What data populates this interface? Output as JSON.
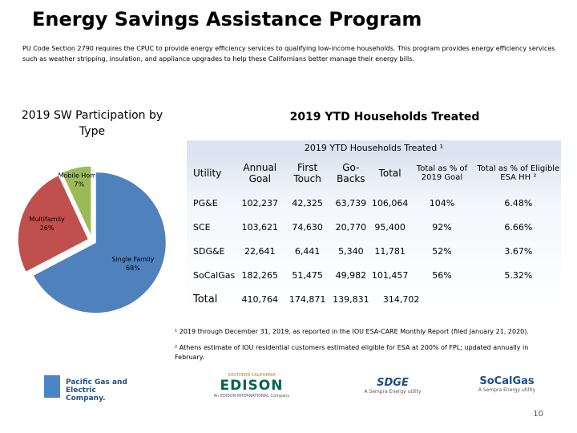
{
  "title": "Energy Savings Assistance Program",
  "description": "PU Code Section 2790 requires the CPUC to provide energy efficiency services to qualifying low-income households. This program provides energy efficiency services such as weather stripping, insulation, and appliance upgrades to help these Californians better manage their energy bills.",
  "chart_data": {
    "type": "pie",
    "title": "2019 SW Participation by Type",
    "categories": [
      "Mobile Home",
      "Multifamily",
      "Single Family"
    ],
    "values": [
      7,
      26,
      68
    ],
    "value_labels": [
      "7%",
      "26%",
      "68%"
    ],
    "colors": [
      "#9bbb59",
      "#c0504d",
      "#4f81bd"
    ]
  },
  "section_title": "2019 YTD Households Treated",
  "table": {
    "title": "2019 YTD Households Treated ¹",
    "header": [
      "Utility",
      "Annual Goal",
      "First Touch",
      "Go-Backs",
      "Total",
      "Total as % of 2019 Goal",
      "Total as % of Eligible ESA HH ²"
    ],
    "rows": [
      [
        "PG&E",
        "102,237",
        "42,325",
        "63,739",
        "106,064",
        "104%",
        "6.48%"
      ],
      [
        "SCE",
        "103,621",
        "74,630",
        "20,770",
        "95,400",
        "92%",
        "6.66%"
      ],
      [
        "SDG&E",
        "22,641",
        "6,441",
        "5,340",
        "11,781",
        "52%",
        "3.67%"
      ],
      [
        "SoCalGas",
        "182,265",
        "51,475",
        "49,982",
        "101,457",
        "56%",
        "5.32%"
      ],
      [
        "Total",
        "410,764",
        "174,871",
        "139,831",
        "314,702"
      ]
    ]
  },
  "footnotes": [
    "¹ 2019 through December 31, 2019, as reported in the IOU ESA-CARE Monthly Report (filed January 21, 2020).",
    "² Athens estimate of IOU residential customers estimated eligible for ESA at 200% of FPL; updated annually in February."
  ],
  "logos": {
    "pge": "Pacific Gas and Electric Company.",
    "sce_top": "SOUTHERN CALIFORNIA",
    "sce": "EDISON",
    "sce_sub": "An EDISON INTERNATIONAL Company",
    "sdge": "SDGE",
    "sdge_sub": "A Sempra Energy utility",
    "socalgas": "SoCalGas",
    "socalgas_sub": "A Sempra Energy utility"
  },
  "page_number": "10"
}
